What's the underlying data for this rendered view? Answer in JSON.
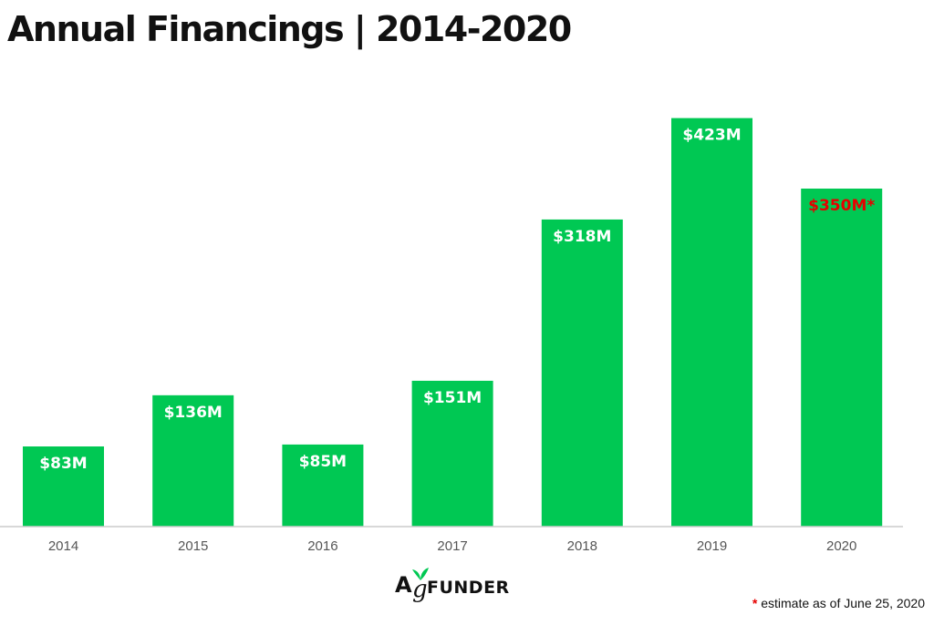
{
  "colors": {
    "bar": "#00c853",
    "label": "#ffffff",
    "estimate_label": "#e60000",
    "axis": "#cccccc"
  },
  "brand": {
    "logo_text": "AgFUNDER",
    "logo_icon": "leaf-icon"
  },
  "footnote": {
    "marker": "*",
    "text": "estimate as of June 25, 2020"
  },
  "chart_data": {
    "type": "bar",
    "title": "Annual Financings | 2014-2020",
    "xlabel": "",
    "ylabel": "",
    "ylim": [
      0,
      450
    ],
    "grid": false,
    "unit": "$M",
    "categories": [
      "2014",
      "2015",
      "2016",
      "2017",
      "2018",
      "2019",
      "2020"
    ],
    "values": [
      83,
      136,
      85,
      151,
      318,
      423,
      350
    ],
    "data_labels": [
      "$83M",
      "$136M",
      "$85M",
      "$151M",
      "$318M",
      "$423M",
      "$350M*"
    ],
    "estimated": [
      false,
      false,
      false,
      false,
      false,
      false,
      true
    ]
  }
}
